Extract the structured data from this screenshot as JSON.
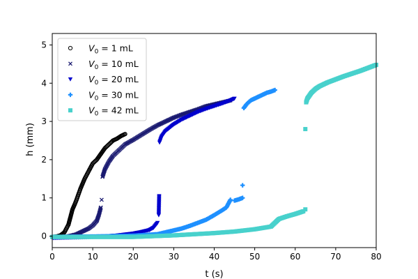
{
  "chart_data": {
    "type": "scatter",
    "title": "",
    "xlabel": "t (s)",
    "ylabel": "h (mm)",
    "xlim": [
      0,
      80
    ],
    "ylim": [
      -0.3,
      5.3
    ],
    "xticks": [
      0,
      10,
      20,
      30,
      40,
      50,
      60,
      70,
      80
    ],
    "yticks": [
      0,
      1,
      2,
      3,
      4,
      5
    ],
    "legend_position": "top-left",
    "series": [
      {
        "name": "V0 = 1 mL",
        "legend_label": {
          "base": "V",
          "sub": "0",
          "rest": " = 1 mL"
        },
        "marker": "circle-open",
        "color": "#000000",
        "segments": [
          {
            "x": [
              0.0,
              1.0,
              2.0,
              3.0,
              3.5,
              4.0,
              4.5,
              5.0,
              5.5,
              6.0,
              7.0,
              8.0,
              9.0,
              10.0,
              11.0,
              12.0,
              13.0,
              14.0,
              15.0,
              16.0,
              17.0,
              18.0
            ],
            "y": [
              -0.02,
              -0.01,
              0.02,
              0.1,
              0.2,
              0.3,
              0.5,
              0.7,
              0.82,
              0.95,
              1.25,
              1.5,
              1.7,
              1.9,
              2.0,
              2.15,
              2.3,
              2.4,
              2.5,
              2.55,
              2.62,
              2.67
            ]
          }
        ]
      },
      {
        "name": "V0 = 10 mL",
        "legend_label": {
          "base": "V",
          "sub": "0",
          "rest": " = 10 mL"
        },
        "marker": "x",
        "color": "#191970",
        "segments": [
          {
            "x": [
              0.0,
              2.0,
              4.0,
              6.0,
              7.0,
              8.0,
              9.0,
              10.0,
              11.0,
              11.5,
              12.0
            ],
            "y": [
              -0.02,
              -0.02,
              0.0,
              0.05,
              0.1,
              0.15,
              0.2,
              0.28,
              0.4,
              0.55,
              0.75
            ]
          },
          {
            "x": [
              12.2
            ],
            "y": [
              0.95
            ]
          },
          {
            "x": [
              12.4,
              13.0,
              14.0,
              15.0,
              16.0,
              18.0,
              20.0,
              22.0,
              24.0,
              26.0,
              28.0,
              30.0,
              32.0,
              34.0,
              36.0,
              38.0,
              40.0,
              42.0,
              44.0
            ],
            "y": [
              1.55,
              1.75,
              1.95,
              2.1,
              2.2,
              2.4,
              2.52,
              2.65,
              2.78,
              2.9,
              3.0,
              3.1,
              3.18,
              3.25,
              3.32,
              3.4,
              3.45,
              3.5,
              3.55
            ]
          }
        ]
      },
      {
        "name": "V0 = 20 mL",
        "legend_label": {
          "base": "V",
          "sub": "0",
          "rest": " = 20 mL"
        },
        "marker": "triangle-down",
        "color": "#0000cd",
        "segments": [
          {
            "x": [
              0.0,
              4.0,
              8.0,
              12.0,
              16.0,
              20.0,
              22.0,
              24.0,
              25.0,
              26.0
            ],
            "y": [
              -0.05,
              -0.04,
              -0.03,
              -0.01,
              0.02,
              0.07,
              0.11,
              0.16,
              0.22,
              0.35
            ]
          },
          {
            "x": [
              26.3,
              26.4
            ],
            "y": [
              0.55,
              1.05
            ]
          },
          {
            "x": [
              26.5,
              27.0,
              28.0,
              30.0,
              32.0,
              34.0,
              36.0,
              38.0,
              40.0,
              42.0,
              44.0,
              45.0
            ],
            "y": [
              2.45,
              2.6,
              2.75,
              2.92,
              3.05,
              3.15,
              3.25,
              3.33,
              3.4,
              3.47,
              3.55,
              3.6
            ]
          }
        ]
      },
      {
        "name": "V0 = 30 mL",
        "legend_label": {
          "base": "V",
          "sub": "0",
          "rest": " = 30 mL"
        },
        "marker": "plus",
        "color": "#1e90ff",
        "segments": [
          {
            "x": [
              0.0,
              10.0,
              20.0,
              26.0,
              28.0,
              30.0,
              32.0,
              34.0,
              36.0,
              38.0,
              40.0,
              42.0,
              43.0,
              44.0
            ],
            "y": [
              -0.02,
              -0.01,
              0.01,
              0.05,
              0.1,
              0.15,
              0.2,
              0.27,
              0.35,
              0.43,
              0.55,
              0.68,
              0.75,
              0.95
            ]
          },
          {
            "x": [
              45.0,
              46.0,
              47.0
            ],
            "y": [
              0.93,
              0.96,
              1.0
            ]
          },
          {
            "x": [
              47.0
            ],
            "y": [
              1.33
            ]
          },
          {
            "x": [
              47.3,
              48.0,
              49.0,
              50.0,
              51.0,
              52.0,
              53.0,
              54.0,
              55.0
            ],
            "y": [
              3.35,
              3.45,
              3.55,
              3.6,
              3.65,
              3.7,
              3.75,
              3.78,
              3.82
            ]
          }
        ]
      },
      {
        "name": "V0 = 42 mL",
        "legend_label": {
          "base": "V",
          "sub": "0",
          "rest": " = 42 mL"
        },
        "marker": "square",
        "color": "#48d1cc",
        "segments": [
          {
            "x": [
              0.0,
              10.0,
              20.0,
              30.0,
              40.0,
              45.0,
              50.0,
              54.0,
              55.0,
              56.0,
              58.0,
              60.0,
              62.0
            ],
            "y": [
              -0.02,
              -0.02,
              -0.02,
              0.02,
              0.08,
              0.12,
              0.18,
              0.25,
              0.35,
              0.45,
              0.52,
              0.58,
              0.65
            ]
          },
          {
            "x": [
              62.5
            ],
            "y": [
              0.7
            ]
          },
          {
            "x": [
              62.5
            ],
            "y": [
              2.8
            ]
          },
          {
            "x": [
              62.7,
              63.0,
              64.0,
              65.0,
              66.0,
              68.0,
              70.0,
              72.0,
              74.0,
              76.0,
              78.0,
              80.0
            ],
            "y": [
              3.5,
              3.6,
              3.75,
              3.85,
              3.92,
              4.02,
              4.1,
              4.18,
              4.25,
              4.32,
              4.4,
              4.48
            ]
          }
        ]
      }
    ]
  }
}
